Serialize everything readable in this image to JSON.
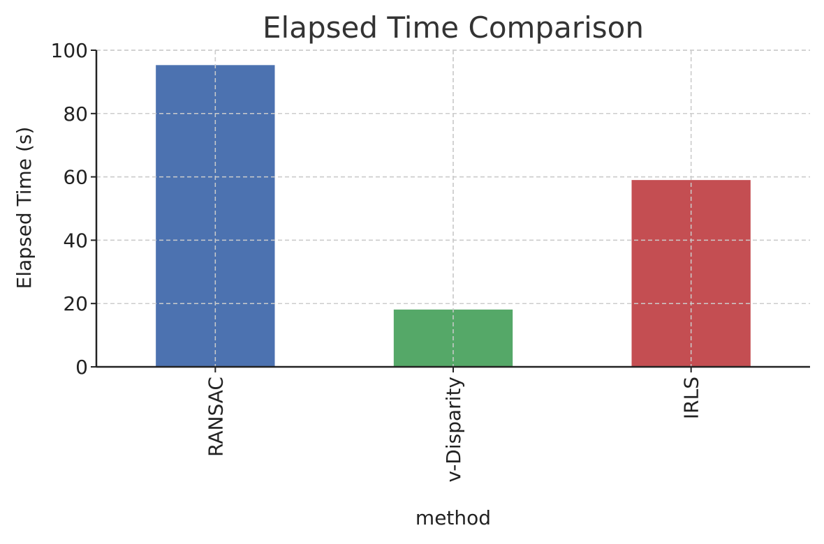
{
  "chart_data": {
    "type": "bar",
    "title": "Elapsed Time Comparison",
    "xlabel": "method",
    "ylabel": "Elapsed Time (s)",
    "categories": [
      "RANSAC",
      "v-Disparity",
      "IRLS"
    ],
    "values": [
      95.3,
      18.1,
      59.0
    ],
    "colors": [
      "#4c72b0",
      "#55a868",
      "#c44e52"
    ],
    "ylim": [
      0,
      100
    ],
    "yticks": [
      0,
      20,
      40,
      60,
      80,
      100
    ],
    "grid": true,
    "legend": "none"
  }
}
